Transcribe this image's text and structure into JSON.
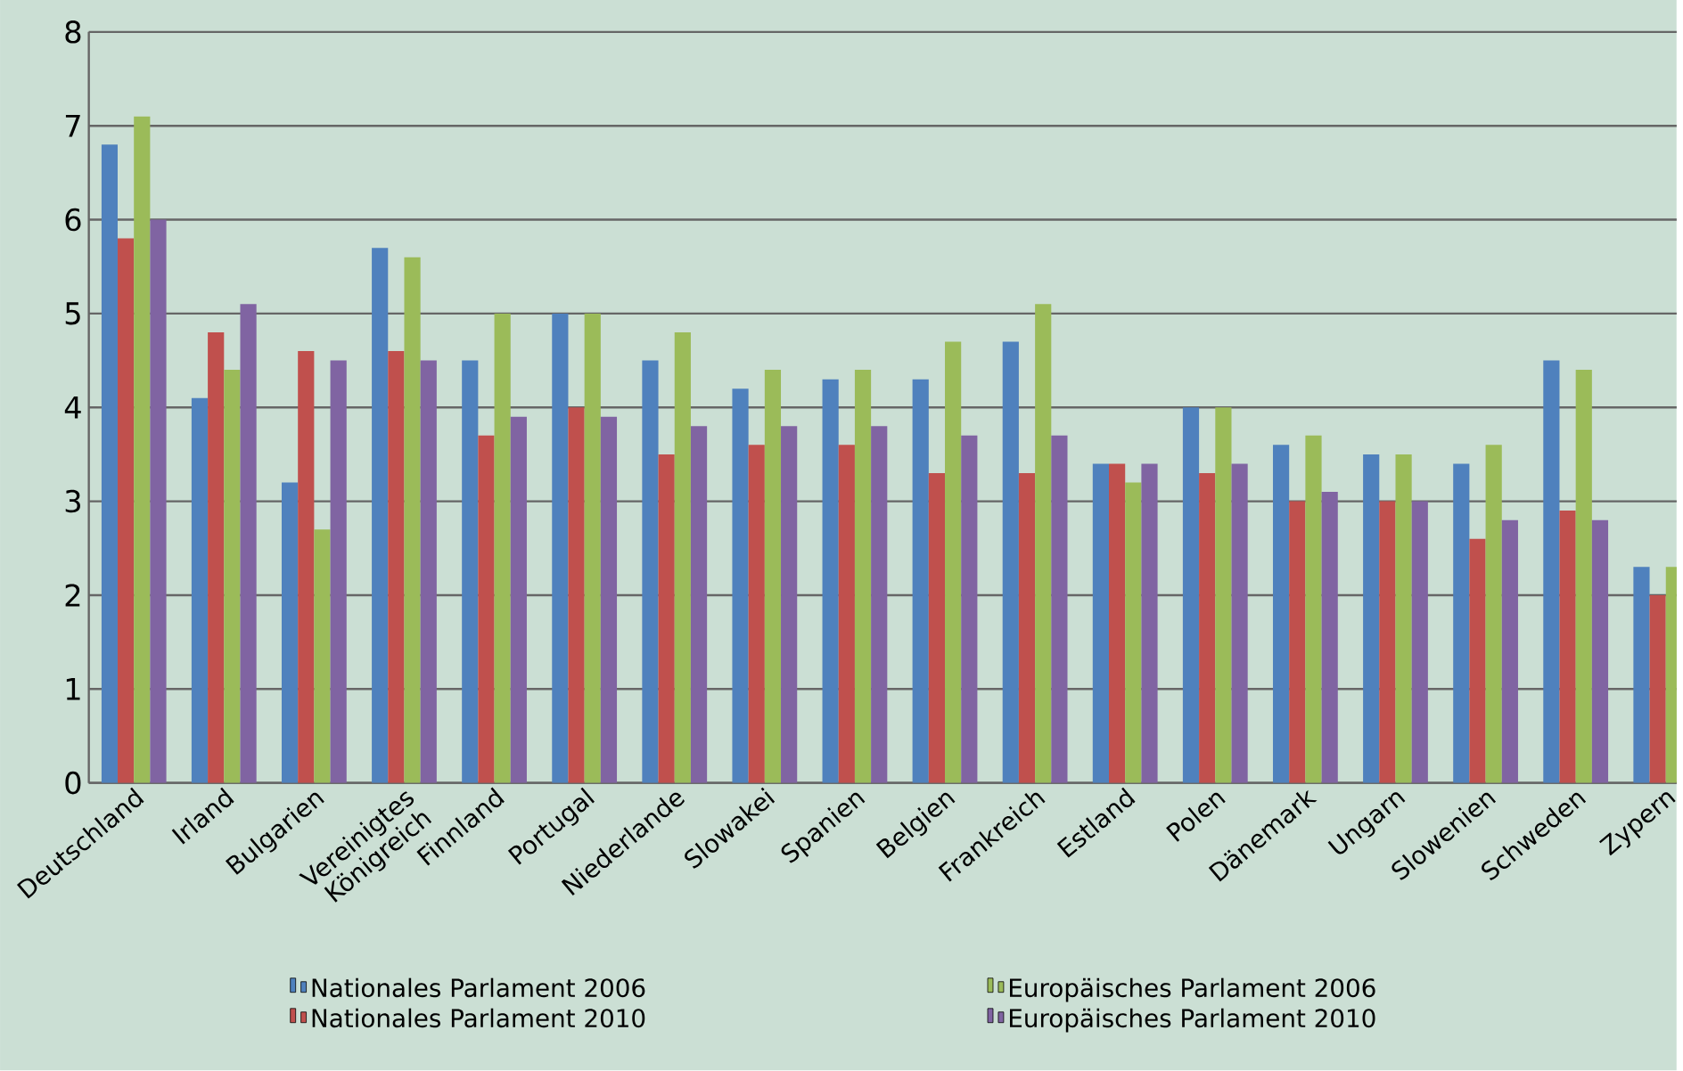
{
  "chart_data": {
    "type": "bar",
    "categories": [
      "Deutschland",
      "Irland",
      "Bulgarien",
      "Vereinigtes Königreich",
      "Finnland",
      "Portugal",
      "Niederlande",
      "Slowakei",
      "Spanien",
      "Belgien",
      "Frankreich",
      "Estland",
      "Polen",
      "Dänemark",
      "Ungarn",
      "Slowenien",
      "Schweden",
      "Zypern"
    ],
    "series": [
      {
        "name": "Nationales Parlament 2006",
        "color": "#4f81bd",
        "values": [
          6.8,
          4.1,
          3.2,
          5.7,
          4.5,
          5.0,
          4.5,
          4.2,
          4.3,
          4.3,
          4.7,
          3.4,
          4.0,
          3.6,
          3.5,
          3.4,
          4.5,
          2.3
        ]
      },
      {
        "name": "Nationales Parlament 2010",
        "color": "#c0504d",
        "values": [
          5.8,
          4.8,
          4.6,
          4.6,
          3.7,
          4.0,
          3.5,
          3.6,
          3.6,
          3.3,
          3.3,
          3.4,
          3.3,
          3.0,
          3.0,
          2.6,
          2.9,
          2.0
        ]
      },
      {
        "name": "Europäisches Parlament 2006",
        "color": "#9bbb59",
        "values": [
          7.1,
          4.4,
          2.7,
          5.6,
          5.0,
          5.0,
          4.8,
          4.4,
          4.4,
          4.7,
          5.1,
          3.2,
          4.0,
          3.7,
          3.5,
          3.6,
          4.4,
          2.3
        ]
      },
      {
        "name": "Europäisches Parlament 2010",
        "color": "#8064a2",
        "values": [
          6.0,
          5.1,
          4.5,
          4.5,
          3.9,
          3.9,
          3.8,
          3.8,
          3.8,
          3.7,
          3.7,
          3.4,
          3.4,
          3.1,
          3.0,
          2.8,
          2.8,
          null
        ]
      }
    ],
    "ylim": [
      0,
      8
    ],
    "yticks": [
      0,
      1,
      2,
      3,
      4,
      5,
      6,
      7,
      8
    ],
    "grid": "y",
    "legend": "bottom"
  }
}
